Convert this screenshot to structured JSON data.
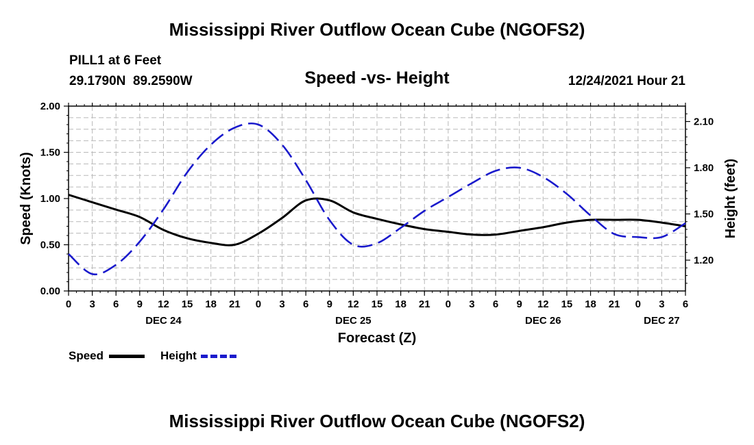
{
  "page": {
    "title": "Mississippi River Outflow Ocean Cube (NGOFS2)",
    "footer_title": "Mississippi River Outflow Ocean Cube (NGOFS2)",
    "station_line": "PILL1 at 6 Feet",
    "coords_line": "29.1790N  89.2590W",
    "datetime": "12/24/2021 Hour 21"
  },
  "chart_data": {
    "type": "line",
    "title": "Speed -vs- Height",
    "xlabel": "Forecast (Z)",
    "ylabel_left": "Speed (Knots)",
    "ylabel_right": "Height (feet)",
    "x_unit": "forecast hours since DEC 24 00Z (starts Dec 23 21Z)",
    "xlim": [
      -3,
      75
    ],
    "x_ticks": [
      -3,
      0,
      3,
      6,
      9,
      12,
      15,
      18,
      21,
      24,
      27,
      30,
      33,
      36,
      39,
      42,
      45,
      48,
      51,
      54,
      57,
      60,
      63,
      66,
      69,
      72,
      75
    ],
    "x_tick_labels": [
      "0",
      "3",
      "6",
      "9",
      "12",
      "15",
      "18",
      "21",
      "0",
      "3",
      "6",
      "9",
      "12",
      "15",
      "18",
      "21",
      "0",
      "3",
      "6",
      "9",
      "12",
      "15",
      "18",
      "21",
      "0",
      "3",
      "6"
    ],
    "x_tick_label_note": "first four labels read 0,3,6,9 at hours 21,0,3,6 relative to Dec 23/24 boundary as printed",
    "printed_x_tick_labels": [
      "0",
      "3",
      "6",
      "9",
      "12",
      "15",
      "18",
      "21",
      "0",
      "3",
      "6",
      "9",
      "12",
      "15",
      "18",
      "21",
      "0",
      "3",
      "6",
      "9",
      "12",
      "15",
      "18",
      "21",
      "0",
      "3",
      "6"
    ],
    "date_labels": [
      {
        "label": "DEC 24",
        "x": 9
      },
      {
        "label": "DEC 25",
        "x": 33
      },
      {
        "label": "DEC 26",
        "x": 57
      },
      {
        "label": "DEC 27",
        "x": 72
      }
    ],
    "y_left": {
      "ylim": [
        0,
        2
      ],
      "ticks": [
        0,
        0.5,
        1,
        1.5,
        2
      ],
      "tick_labels": [
        "0.00",
        "0.50",
        "1.00",
        "1.50",
        "2.00"
      ]
    },
    "y_right": {
      "ylim": [
        1.0,
        2.2
      ],
      "ticks": [
        1.2,
        1.5,
        1.8,
        2.1
      ],
      "tick_labels": [
        "1.20",
        "1.50",
        "1.80",
        "2.10"
      ]
    },
    "grid": true,
    "series": [
      {
        "name": "Speed",
        "axis": "left",
        "color": "#000000",
        "style": "solid",
        "x": [
          -3,
          0,
          3,
          6,
          9,
          12,
          15,
          18,
          21,
          24,
          27,
          30,
          33,
          36,
          39,
          42,
          45,
          48,
          51,
          54,
          57,
          60,
          63,
          66,
          69,
          72,
          75
        ],
        "values": [
          1.04,
          0.96,
          0.88,
          0.8,
          0.66,
          0.57,
          0.52,
          0.5,
          0.62,
          0.79,
          0.98,
          0.98,
          0.85,
          0.78,
          0.72,
          0.67,
          0.64,
          0.61,
          0.61,
          0.65,
          0.69,
          0.74,
          0.77,
          0.77,
          0.77,
          0.74,
          0.7
        ]
      },
      {
        "name": "Height",
        "axis": "right",
        "color": "#1a1acc",
        "style": "dashed",
        "x": [
          -3,
          0,
          3,
          6,
          9,
          12,
          15,
          18,
          21,
          24,
          27,
          30,
          33,
          36,
          39,
          42,
          45,
          48,
          51,
          54,
          57,
          60,
          63,
          66,
          69,
          72,
          75
        ],
        "values": [
          1.24,
          1.11,
          1.17,
          1.32,
          1.53,
          1.77,
          1.95,
          2.06,
          2.08,
          1.95,
          1.72,
          1.46,
          1.3,
          1.31,
          1.41,
          1.52,
          1.61,
          1.7,
          1.78,
          1.8,
          1.74,
          1.63,
          1.49,
          1.37,
          1.35,
          1.35,
          1.44
        ]
      }
    ],
    "legend": [
      {
        "label": "Speed",
        "color": "#000000",
        "style": "solid"
      },
      {
        "label": "Height",
        "color": "#1a1acc",
        "style": "dashed"
      }
    ],
    "legend_placement": "bottom-left"
  }
}
